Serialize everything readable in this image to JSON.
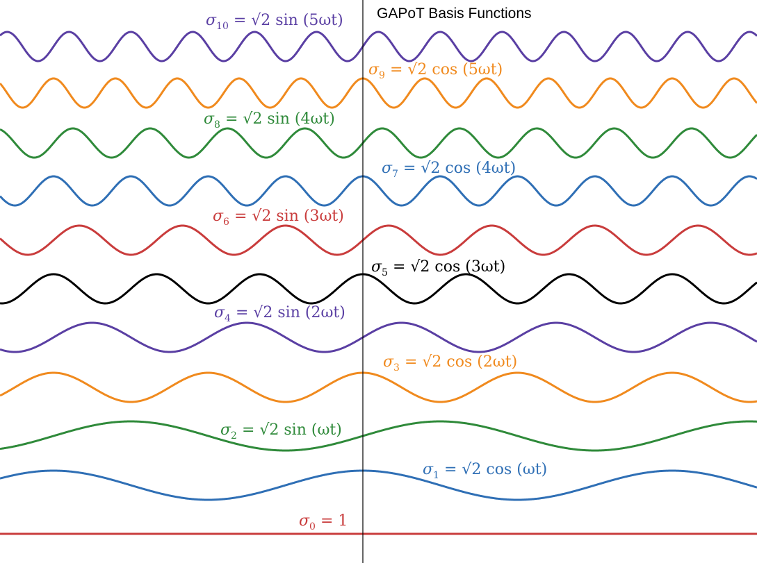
{
  "title": "GAPoT Basis Functions",
  "functions": [
    {
      "name": "σ10",
      "sym": "σ",
      "idx": "10",
      "kind": "sin",
      "coef": "√2",
      "arg": "(5ωt)",
      "harmonic": 5,
      "phase": "sin",
      "color": "#5a3fa3"
    },
    {
      "name": "σ9",
      "sym": "σ",
      "idx": "9",
      "kind": "cos",
      "coef": "√2",
      "arg": "(5ωt)",
      "harmonic": 5,
      "phase": "cos",
      "color": "#f08a1e"
    },
    {
      "name": "σ8",
      "sym": "σ",
      "idx": "8",
      "kind": "sin",
      "coef": "√2",
      "arg": "(4ωt)",
      "harmonic": 4,
      "phase": "sin",
      "color": "#2f8a3a"
    },
    {
      "name": "σ7",
      "sym": "σ",
      "idx": "7",
      "kind": "cos",
      "coef": "√2",
      "arg": "(4ωt)",
      "harmonic": 4,
      "phase": "cos",
      "color": "#2f6fb5"
    },
    {
      "name": "σ6",
      "sym": "σ",
      "idx": "6",
      "kind": "sin",
      "coef": "√2",
      "arg": "(3ωt)",
      "harmonic": 3,
      "phase": "sin",
      "color": "#c93c3c"
    },
    {
      "name": "σ5",
      "sym": "σ",
      "idx": "5",
      "kind": "cos",
      "coef": "√2",
      "arg": "(3ωt)",
      "harmonic": 3,
      "phase": "cos",
      "color": "#000000"
    },
    {
      "name": "σ4",
      "sym": "σ",
      "idx": "4",
      "kind": "sin",
      "coef": "√2",
      "arg": "(2ωt)",
      "harmonic": 2,
      "phase": "sin",
      "color": "#5a3fa3"
    },
    {
      "name": "σ3",
      "sym": "σ",
      "idx": "3",
      "kind": "cos",
      "coef": "√2",
      "arg": "(2ωt)",
      "harmonic": 2,
      "phase": "cos",
      "color": "#f08a1e"
    },
    {
      "name": "σ2",
      "sym": "σ",
      "idx": "2",
      "kind": "sin",
      "coef": "√2",
      "arg": "(ωt)",
      "harmonic": 1,
      "phase": "sin",
      "color": "#2f8a3a"
    },
    {
      "name": "σ1",
      "sym": "σ",
      "idx": "1",
      "kind": "cos",
      "coef": "√2",
      "arg": "(ωt)",
      "harmonic": 1,
      "phase": "cos",
      "color": "#2f6fb5"
    },
    {
      "name": "σ0",
      "sym": "σ",
      "idx": "0",
      "kind": "const",
      "coef": "",
      "arg": "",
      "value": "1",
      "harmonic": 0,
      "phase": "const",
      "color": "#c93c3c"
    }
  ]
}
